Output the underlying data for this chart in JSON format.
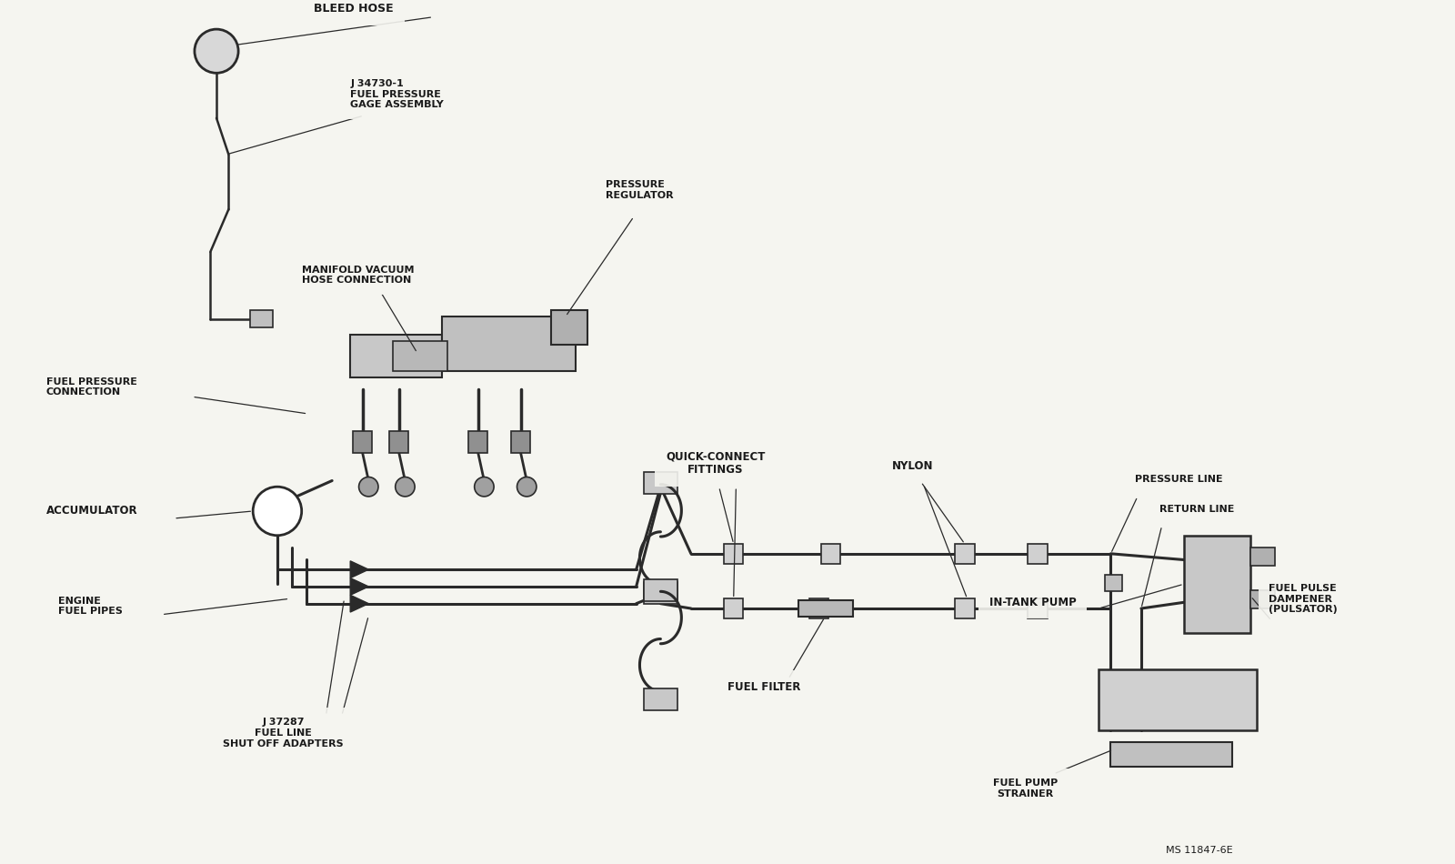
{
  "bg_color": "#f5f5f0",
  "line_color": "#2a2a2a",
  "lw_main": 1.8,
  "lw_pipe": 2.2,
  "lw_thin": 1.0,
  "labels": {
    "bleed_hose": "BLEED HOSE",
    "fuel_pressure_gage": "J 34730-1\nFUEL PRESSURE\nGAGE ASSEMBLY",
    "pressure_regulator": "PRESSURE\nREGULATOR",
    "manifold_vacuum": "MANIFOLD VACUUM\nHOSE CONNECTION",
    "fuel_pressure_conn": "FUEL PRESSURE\nCONNECTION",
    "accumulator": "ACCUMULATOR",
    "engine_fuel_pipes": "ENGINE\nFUEL PIPES",
    "shutoff_adapters": "J 37287\nFUEL LINE\nSHUT OFF ADAPTERS",
    "quick_connect": "QUICK-CONNECT\nFITTINGS",
    "nylon": "NYLON",
    "fuel_filter": "FUEL FILTER",
    "in_tank_pump": "IN-TANK PUMP",
    "pressure_line": "PRESSURE LINE",
    "return_line": "RETURN LINE",
    "fuel_pump_strainer": "FUEL PUMP\nSTRAINER",
    "fuel_pulse_dampener": "FUEL PULSE\nDAMPENER\n(PULSATOR)",
    "ms_code": "MS 11847-6E"
  }
}
